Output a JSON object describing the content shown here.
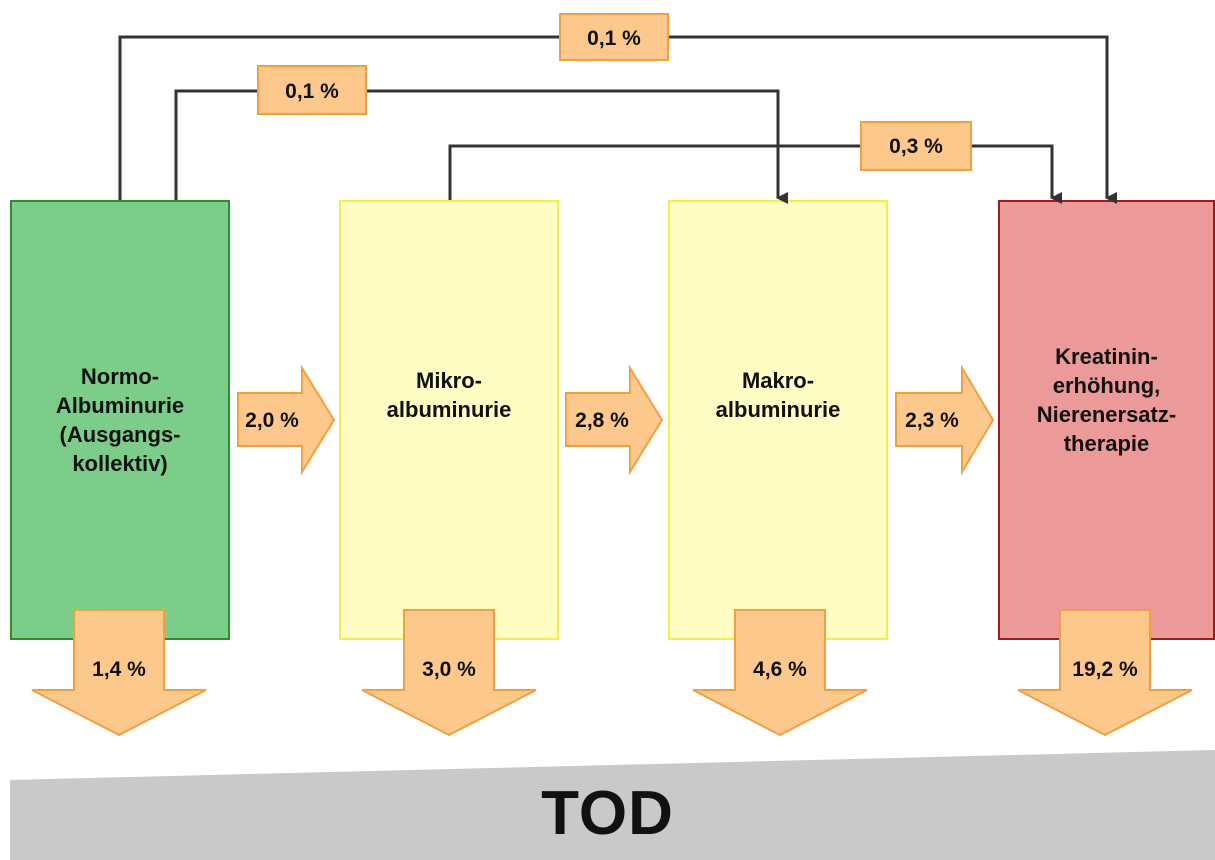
{
  "colors": {
    "normo_fill": "#7ccd8a",
    "normo_border": "#2e8b2e",
    "mikro_fill": "#fdfdc4",
    "mikro_border": "#f2ee4a",
    "makro_fill": "#fdfdc4",
    "makro_border": "#f2ee4a",
    "kreat_fill": "#ec999a",
    "kreat_border": "#9b1c1c",
    "arrow_fill": "#fcc88c",
    "arrow_border": "#f0a040",
    "line": "#333333",
    "tod_fill": "#c9c9c9"
  },
  "stages": {
    "normo": "Normo-\nAlbuminurie\n(Ausgangs-\nkollektiv)",
    "mikro": "Mikro-\nalbuminurie",
    "makro": "Makro-\nalbuminurie",
    "kreat": "Kreatinin-\nerhöhung,\nNierenersatz-\ntherapie"
  },
  "transitions": {
    "normo_to_mikro": "2,0 %",
    "mikro_to_makro": "2,8 %",
    "makro_to_kreat": "2,3 %",
    "normo_to_kreat": "0,1 %",
    "normo_to_makro": "0,1 %",
    "mikro_to_kreat": "0,3 %"
  },
  "mortality": {
    "normo": "1,4 %",
    "mikro": "3,0 %",
    "makro": "4,6 %",
    "kreat": "19,2 %"
  },
  "outcome": "TOD"
}
